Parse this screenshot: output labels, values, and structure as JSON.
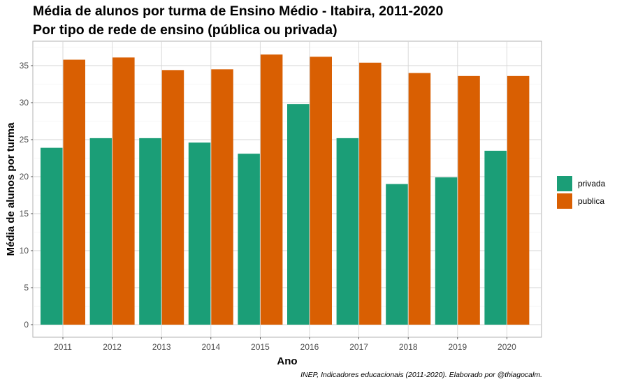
{
  "chart_data": {
    "type": "bar",
    "title": "Média de alunos por turma de Ensino Médio - Itabira, 2011-2020",
    "subtitle": "Por tipo de rede de ensino (pública ou privada)",
    "xlabel": "Ano",
    "ylabel": "Média de alunos por turma",
    "categories": [
      "2011",
      "2012",
      "2013",
      "2014",
      "2015",
      "2016",
      "2017",
      "2018",
      "2019",
      "2020"
    ],
    "series": [
      {
        "name": "privada",
        "color": "#1b9e77",
        "values": [
          23.9,
          25.2,
          25.2,
          24.6,
          23.1,
          29.8,
          25.2,
          19.0,
          19.9,
          23.5
        ]
      },
      {
        "name": "publica",
        "color": "#d95f02",
        "values": [
          35.8,
          36.1,
          34.4,
          34.5,
          36.5,
          36.2,
          35.4,
          34.0,
          33.6,
          33.6
        ]
      }
    ],
    "ylim": [
      0,
      38
    ],
    "yticks": [
      0,
      5,
      10,
      15,
      20,
      25,
      30,
      35
    ],
    "grid": true,
    "legend_position": "right",
    "caption": "INEP, Indicadores educacionais (2011-2020). Elaborado por @thiagocalm."
  }
}
